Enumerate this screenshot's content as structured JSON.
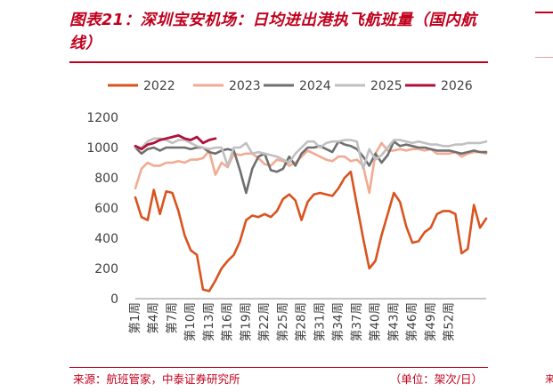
{
  "title": "图表21：深圳宝安机场：日均进出港执飞航班量（国内航线）",
  "footer": {
    "source": "来源：航班管家，中泰证券研究所",
    "unit": "（单位：架次/日）"
  },
  "colors": {
    "accent": "#c0001d",
    "s2022": "#d9531e",
    "s2023": "#f3aa92",
    "s2024": "#6f6f6f",
    "s2025": "#c0c0c0",
    "s2026": "#b0103a"
  },
  "chart_data": {
    "type": "line",
    "ylim": [
      0,
      1200
    ],
    "yticks": [
      "0",
      "200",
      "400",
      "600",
      "800",
      "1000",
      "1200"
    ],
    "xtick_labels": [
      "第1周",
      "第4周",
      "第7周",
      "第10周",
      "第13周",
      "第16周",
      "第19周",
      "第22周",
      "第25周",
      "第28周",
      "第31周",
      "第34周",
      "第37周",
      "第40周",
      "第43周",
      "第46周",
      "第49周",
      "第52周"
    ],
    "legend_position": "top",
    "series": [
      {
        "name": "2022",
        "values": [
          670,
          540,
          520,
          720,
          560,
          710,
          700,
          580,
          420,
          320,
          290,
          60,
          50,
          120,
          200,
          250,
          290,
          380,
          520,
          550,
          540,
          560,
          540,
          580,
          660,
          690,
          650,
          520,
          640,
          690,
          700,
          690,
          680,
          730,
          800,
          840,
          620,
          400,
          200,
          250,
          420,
          560,
          700,
          640,
          480,
          370,
          380,
          440,
          470,
          560,
          580,
          580,
          560,
          300,
          330,
          620,
          470,
          530
        ]
      },
      {
        "name": "2023",
        "values": [
          730,
          860,
          900,
          880,
          880,
          900,
          900,
          910,
          900,
          920,
          920,
          930,
          980,
          820,
          900,
          870,
          960,
          950,
          960,
          960,
          930,
          890,
          880,
          920,
          910,
          880,
          900,
          940,
          980,
          960,
          940,
          920,
          910,
          940,
          940,
          910,
          920,
          880,
          700,
          960,
          1030,
          980,
          980,
          990,
          980,
          990,
          990,
          980,
          990,
          960,
          960,
          960,
          970,
          940,
          960,
          970,
          970,
          960
        ]
      },
      {
        "name": "2024",
        "values": [
          1000,
          960,
          990,
          1000,
          980,
          1000,
          1000,
          1000,
          1000,
          990,
          1000,
          1000,
          970,
          960,
          980,
          990,
          980,
          850,
          700,
          860,
          940,
          960,
          850,
          840,
          860,
          940,
          880,
          960,
          1000,
          1000,
          1010,
          990,
          970,
          1040,
          1020,
          1010,
          990,
          940,
          880,
          960,
          900,
          950,
          1040,
          1010,
          1020,
          1010,
          1000,
          1000,
          990,
          980,
          980,
          980,
          970,
          960,
          970,
          980,
          970,
          970
        ]
      },
      {
        "name": "2025",
        "values": [
          1000,
          1000,
          1040,
          1060,
          1060,
          1050,
          1030,
          1050,
          1050,
          1030,
          1010,
          1000,
          990,
          1000,
          1000,
          880,
          1000,
          1000,
          1030,
          960,
          970,
          960,
          950,
          940,
          920,
          900,
          960,
          1000,
          1040,
          1040,
          1000,
          1030,
          1040,
          1040,
          1050,
          1050,
          1040,
          860,
          990,
          920,
          950,
          1000,
          1050,
          1050,
          1040,
          1030,
          1040,
          1030,
          1020,
          1020,
          1010,
          1010,
          1020,
          1020,
          1030,
          1030,
          1030,
          1040
        ]
      },
      {
        "name": "2026",
        "values": [
          1010,
          990,
          1020,
          1030,
          1050,
          1060,
          1070,
          1080,
          1060,
          1050,
          1070,
          1030,
          1050,
          1060
        ]
      }
    ]
  }
}
